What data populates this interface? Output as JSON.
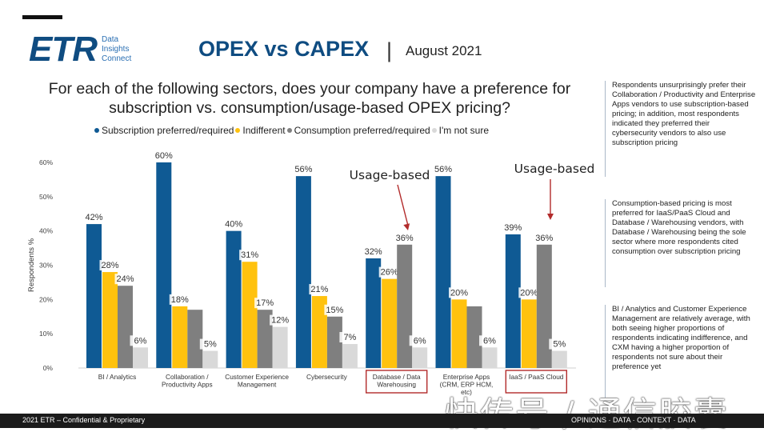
{
  "header": {
    "logo_text": "ETR",
    "logo_sub": [
      "Data",
      "Insights",
      "Connect"
    ],
    "title": "OPEX vs CAPEX",
    "separator": "|",
    "date": "August 2021"
  },
  "question": "For each of the following sectors, does your company have a preference for subscription vs. consumption/usage-based OPEX pricing?",
  "colors": {
    "subscription": "#0f5a94",
    "indifferent": "#ffc20e",
    "consumption": "#7f7f7f",
    "not_sure": "#d9d9d9",
    "highlight_box": "#b22b2b",
    "accent": "#0f4c81"
  },
  "legend": {
    "items": [
      {
        "label": "Subscription preferred/required",
        "color": "#0f5a94"
      },
      {
        "label": "Indifferent",
        "color": "#ffc20e"
      },
      {
        "label": "Consumption preferred/required",
        "color": "#7f7f7f"
      },
      {
        "label": "I'm not sure",
        "color": "#d9d9d9"
      }
    ]
  },
  "chart_data": {
    "type": "bar",
    "title": "",
    "ylabel": "Respondents %",
    "xlabel": "",
    "ylim": [
      0,
      60
    ],
    "yticks": [
      "0%",
      "10%",
      "20%",
      "30%",
      "40%",
      "50%",
      "60%"
    ],
    "legend_placement": "top",
    "categories": [
      [
        "BI / Analytics"
      ],
      [
        "Collaboration /",
        "Productivity Apps"
      ],
      [
        "Customer Experience",
        "Management"
      ],
      [
        "Cybersecurity"
      ],
      [
        "Database / Data",
        "Warehousing"
      ],
      [
        "Enterprise Apps",
        "(CRM, ERP HCM,",
        "etc)"
      ],
      [
        "IaaS / PaaS Cloud"
      ]
    ],
    "highlighted_categories": [
      4,
      6
    ],
    "series": [
      {
        "name": "Subscription preferred/required",
        "values": [
          42,
          60,
          40,
          56,
          32,
          56,
          39
        ]
      },
      {
        "name": "Indifferent",
        "values": [
          28,
          18,
          31,
          21,
          26,
          20,
          20
        ]
      },
      {
        "name": "Consumption preferred/required",
        "values": [
          24,
          17,
          17,
          15,
          36,
          18,
          36
        ]
      },
      {
        "name": "I'm not sure",
        "values": [
          6,
          5,
          12,
          7,
          6,
          6,
          5
        ]
      }
    ],
    "data_labels": [
      [
        "42%",
        "28%",
        "24%",
        "6%"
      ],
      [
        "60%",
        "18%",
        "",
        "5%"
      ],
      [
        "40%",
        "31%",
        "17%",
        "12%"
      ],
      [
        "56%",
        "21%",
        "15%",
        "7%"
      ],
      [
        "32%",
        "26%",
        "36%",
        "6%"
      ],
      [
        "56%",
        "20%",
        "",
        "6%"
      ],
      [
        "39%",
        "20%",
        "36%",
        "5%"
      ]
    ],
    "annotations": [
      {
        "text": "Usage-based",
        "category": 4
      },
      {
        "text": "Usage-based",
        "category": 6
      }
    ]
  },
  "notes": [
    "Respondents unsurprisingly prefer their Collaboration / Productivity and Enterprise Apps vendors to use subscription-based pricing; in addition, most respondents indicated they preferred their cybersecurity vendors to also use subscription pricing",
    "Consumption-based pricing is most preferred for IaaS/PaaS Cloud and Database / Warehousing vendors, with Database / Warehousing being the sole sector where more respondents cited consumption over subscription pricing",
    "BI / Analytics  and Customer Experience Management are relatively average, with both seeing higher proportions of respondents indicating indifference, and CXM having a higher proportion of respondents not sure about their preference yet"
  ],
  "footer": {
    "left": "2021 ETR – Confidential & Proprietary",
    "right": "OPINIONS · DATA · CONTEXT · DATA"
  },
  "watermark": "快传号 / 通信胶囊"
}
